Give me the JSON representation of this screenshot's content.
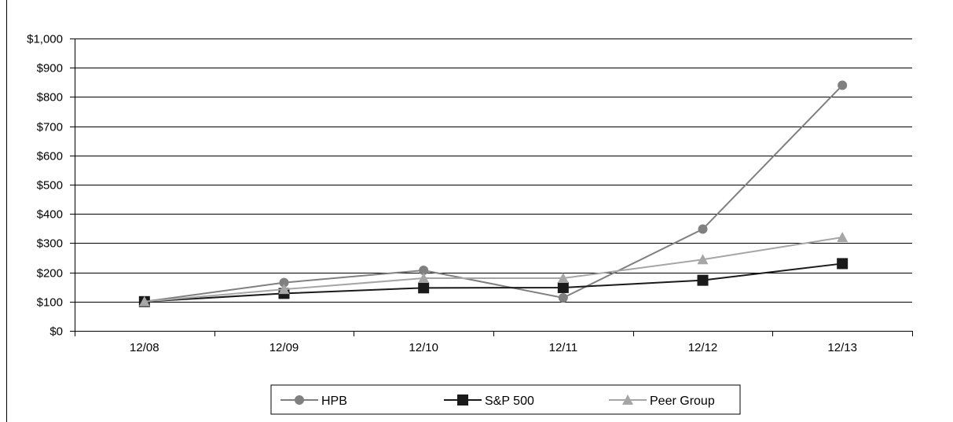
{
  "chart_data": {
    "type": "line",
    "title": "",
    "xlabel": "",
    "ylabel": "",
    "categories": [
      "12/08",
      "12/09",
      "12/10",
      "12/11",
      "12/12",
      "12/13"
    ],
    "ylim": [
      0,
      1000
    ],
    "y_ticks": [
      0,
      100,
      200,
      300,
      400,
      500,
      600,
      700,
      800,
      900,
      1000
    ],
    "y_tick_labels": [
      "$0",
      "$100",
      "$200",
      "$300",
      "$400",
      "$500",
      "$600",
      "$700",
      "$800",
      "$900",
      "$1,000"
    ],
    "grid": true,
    "legend_position": "bottom",
    "series": [
      {
        "name": "HPB",
        "marker": "circle",
        "color": "#808080",
        "values": [
          100,
          165,
          207,
          113,
          348,
          840
        ]
      },
      {
        "name": "S&P 500",
        "marker": "square",
        "color": "#1a1a1a",
        "values": [
          100,
          128,
          147,
          148,
          173,
          230
        ]
      },
      {
        "name": "Peer Group",
        "marker": "triangle",
        "color": "#a6a6a6",
        "values": [
          100,
          142,
          180,
          180,
          244,
          320
        ]
      }
    ]
  }
}
